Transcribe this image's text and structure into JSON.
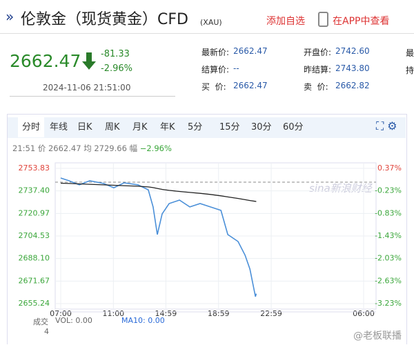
{
  "header": {
    "title": "伦敦金（现货黄金）CFD",
    "code": "(XAU)",
    "add": "添加自选",
    "app": "在APP中查看"
  },
  "quote": {
    "price": "2662.47",
    "change": "-81.33",
    "change_pct": "-2.96%",
    "time": "2024-11-06 21:51:00",
    "fields": [
      {
        "label": "最新价:",
        "value": "2662.47"
      },
      {
        "label": "开盘价:",
        "value": "2742.60"
      },
      {
        "label": "结算价:",
        "value": "--"
      },
      {
        "label": "昨结算:",
        "value": "2743.80"
      },
      {
        "label": "买  价:",
        "value": "2662.47"
      },
      {
        "label": "卖  价:",
        "value": "2662.82"
      }
    ],
    "cut": [
      "最",
      "持"
    ]
  },
  "tabs": [
    "分时",
    "年线",
    "日K",
    "周K",
    "月K",
    "年K",
    "5分",
    "15分",
    "30分",
    "60分"
  ],
  "info": {
    "time": "21:51",
    "price": "2662.47",
    "avg": "2729.66",
    "pct_label": "幅",
    "pct": "−2.96%"
  },
  "volume": {
    "label": "成交",
    "vol": "VOL: 0.00",
    "ma": "MA10: 0.00",
    "count": "4"
  },
  "watermark": "sina新浪财经",
  "credit": "@老板联播",
  "chart_data": {
    "type": "line",
    "x": [
      "07:00",
      "07:38",
      "08:25",
      "09:12",
      "10:15",
      "11:02",
      "11:49",
      "12:52",
      "13:39",
      "14:01",
      "14:20",
      "14:42",
      "15:14",
      "16:01",
      "16:48",
      "17:35",
      "18:22",
      "19:10",
      "19:41",
      "20:28",
      "21:00",
      "21:22",
      "21:47",
      "21:51"
    ],
    "series": [
      {
        "name": "价",
        "color": "#4a8fd8",
        "values": [
          2746.8,
          2744.8,
          2741.8,
          2744.8,
          2742.8,
          2739.7,
          2743.3,
          2741.8,
          2738.2,
          2725.7,
          2705.6,
          2720.7,
          2728.2,
          2730.7,
          2725.7,
          2728.2,
          2725.7,
          2723.2,
          2705.6,
          2700.5,
          2690.5,
          2680.4,
          2660.3,
          2662.47
        ]
      },
      {
        "name": "均",
        "color": "#222222",
        "values": [
          2743,
          2742.8,
          2742.5,
          2742.2,
          2741.8,
          2741.5,
          2741.2,
          2740.8,
          2740.3,
          2739.8,
          2739.2,
          2738.5,
          2737.8,
          2737,
          2736.3,
          2735.6,
          2734.8,
          2733.8,
          2733,
          2731.9,
          2731,
          2730.4,
          2729.8,
          2729.66
        ]
      }
    ],
    "baseline": 2743.8,
    "xlim": [
      "07:00",
      "06:00"
    ],
    "xticks": [
      "07:00",
      "11:00",
      "14:59",
      "18:59",
      "22:59",
      "06:00"
    ],
    "ylim": [
      2655.24,
      2753.83
    ],
    "yticks": [
      2753.83,
      {
        "value": 2737.4,
        "label": "2737.40"
      },
      2720.97,
      2704.53,
      {
        "value": 2688.1,
        "label": "2688.10"
      },
      2671.67,
      2655.24
    ],
    "y2lim": [
      -3.23,
      0.37
    ],
    "y2ticks": [
      {
        "value": 0.37,
        "label": "0.37%"
      },
      {
        "value": -0.23,
        "label": "-0.23%"
      },
      {
        "value": -0.83,
        "label": "-0.83%"
      },
      {
        "value": -1.43,
        "label": "-1.43%"
      },
      {
        "value": -2.03,
        "label": "-2.03%"
      },
      {
        "value": -2.63,
        "label": "-2.63%"
      },
      {
        "value": -3.23,
        "label": "-3.23%"
      }
    ],
    "up_color": "#e0433a",
    "down_color": "#3aa63a",
    "grid": true
  }
}
